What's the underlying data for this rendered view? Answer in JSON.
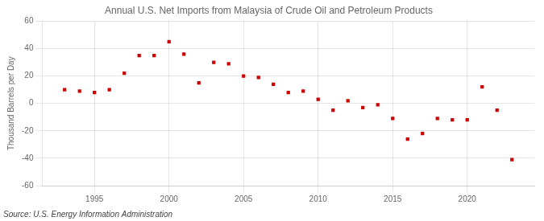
{
  "chart_data": {
    "type": "scatter",
    "title": "Annual U.S. Net Imports from Malaysia of Crude Oil and Petroleum Products",
    "ylabel": "Thousand Barrels per Day",
    "annotations": [
      "Source: U.S. Energy Information Administration"
    ],
    "x": [
      1993,
      1994,
      1995,
      1996,
      1997,
      1998,
      1999,
      2000,
      2001,
      2002,
      2003,
      2004,
      2005,
      2006,
      2007,
      2008,
      2009,
      2010,
      2011,
      2012,
      2013,
      2014,
      2015,
      2016,
      2017,
      2018,
      2019,
      2020,
      2021,
      2022,
      2023
    ],
    "values": [
      10,
      9,
      8,
      10,
      22,
      35,
      35,
      45,
      36,
      15,
      30,
      29,
      20,
      19,
      14,
      8,
      9,
      3,
      -5,
      2,
      -3,
      -1,
      -11,
      -26,
      -22,
      -11,
      -12,
      -12,
      12,
      -5,
      -41
    ],
    "color": "#cc0000",
    "marker": "square",
    "xlim": [
      1991.5,
      2024.5
    ],
    "xticks": [
      1995,
      2000,
      2005,
      2010,
      2015,
      2020
    ],
    "ylim": [
      -60,
      60
    ],
    "yticks": [
      -60,
      -40,
      -20,
      0,
      20,
      40,
      60
    ],
    "grid": true
  }
}
